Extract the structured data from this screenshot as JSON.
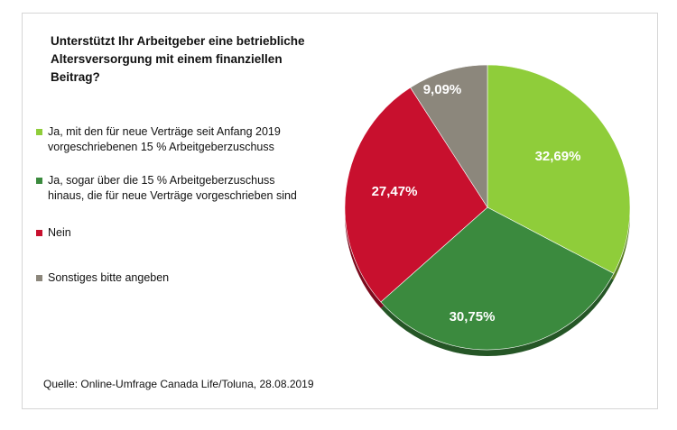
{
  "chart_data": {
    "type": "pie",
    "title": "Unterstützt Ihr Arbeitgeber eine betriebliche Altersversorgung mit einem finanziellen Beitrag?",
    "title_lines": [
      "Unterstützt Ihr Arbeitgeber eine betriebliche",
      "Altersversorgung mit einem finanziellen",
      "Beitrag?"
    ],
    "legend_placement": "left",
    "slices": [
      {
        "name": "Ja, mit den für neue Verträge seit Anfang 2019 vorgeschriebenen 15 % Arbeitgeberzuschuss",
        "value": 32.69,
        "label": "32,69%",
        "color": "#8fcd3a"
      },
      {
        "name": "Ja, sogar über die 15 % Arbeitgeberzuschuss hinaus, die für neue Verträge vorgeschrieben sind",
        "value": 30.75,
        "label": "30,75%",
        "color": "#3b8a3e"
      },
      {
        "name": "Nein",
        "value": 27.47,
        "label": "27,47%",
        "color": "#c8102e"
      },
      {
        "name": "Sonstiges bitte angeben",
        "value": 9.09,
        "label": "9,09%",
        "color": "#8c877c"
      }
    ],
    "legend_lines": [
      [
        "Ja, mit den für neue Verträge seit Anfang 2019",
        "vorgeschriebenen 15 % Arbeitgeberzuschuss"
      ],
      [
        "Ja, sogar über die 15 % Arbeitgeberzuschuss",
        "hinaus, die für neue Verträge vorgeschrieben sind"
      ],
      [
        "Nein"
      ],
      [
        "Sonstiges bitte angeben"
      ]
    ]
  },
  "source": "Quelle: Online-Umfrage Canada Life/Toluna, 28.08.2019"
}
